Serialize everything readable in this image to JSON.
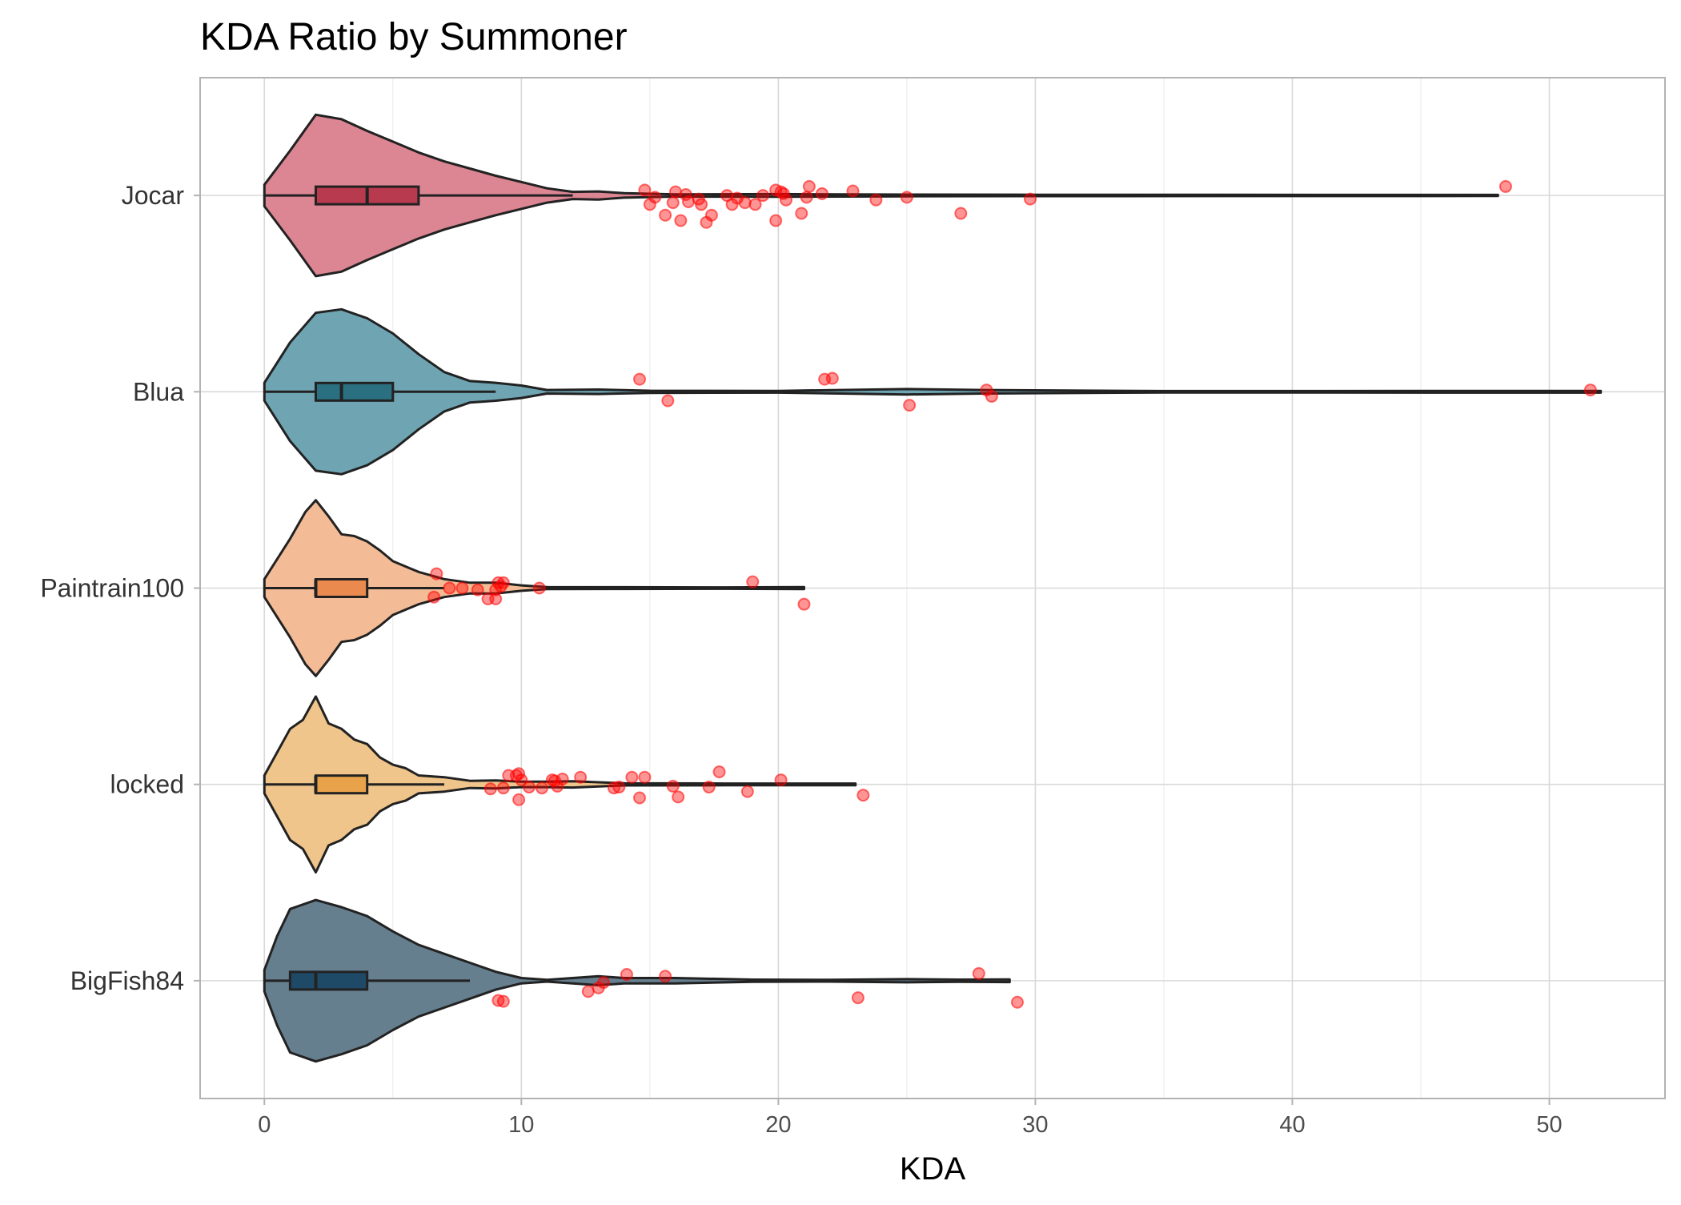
{
  "chart_data": {
    "type": "violin",
    "title": "KDA Ratio by Summoner",
    "xlabel": "KDA",
    "ylabel": "",
    "xlim": [
      -2.5,
      54.5
    ],
    "xticks": [
      0,
      10,
      20,
      30,
      40,
      50
    ],
    "grid": true,
    "colors": {
      "outlier_points": "#ff0000",
      "outline": "#222222",
      "grid": "#d9d9d9",
      "panel_border": "#b3b3b3"
    },
    "categories": [
      "Jocar",
      "Blua",
      "Paintrain100",
      "locked",
      "BigFish84"
    ],
    "series": [
      {
        "name": "Jocar",
        "fill": "#dc8593",
        "box_fill": "#b83a4f",
        "box": {
          "whisker_low": 0,
          "q1": 2,
          "median": 4,
          "q3": 6,
          "whisker_high": 12
        },
        "max": 48,
        "density": [
          [
            0,
            0.12
          ],
          [
            1,
            0.5
          ],
          [
            2,
            0.9
          ],
          [
            3,
            0.85
          ],
          [
            4,
            0.72
          ],
          [
            5,
            0.6
          ],
          [
            6,
            0.48
          ],
          [
            7,
            0.38
          ],
          [
            8,
            0.3
          ],
          [
            9,
            0.22
          ],
          [
            10,
            0.15
          ],
          [
            11,
            0.08
          ],
          [
            12,
            0.04
          ],
          [
            13,
            0.045
          ],
          [
            14,
            0.025
          ],
          [
            16,
            0.012
          ],
          [
            20,
            0.015
          ],
          [
            25,
            0.01
          ],
          [
            30,
            0.008
          ],
          [
            48,
            0.006
          ]
        ],
        "outliers": [
          [
            14.8,
            1.06
          ],
          [
            15.0,
            0.9
          ],
          [
            15.2,
            0.98
          ],
          [
            15.6,
            0.78
          ],
          [
            15.9,
            0.92
          ],
          [
            16.0,
            1.04
          ],
          [
            16.2,
            0.72
          ],
          [
            16.4,
            1.01
          ],
          [
            16.5,
            0.93
          ],
          [
            16.9,
            0.96
          ],
          [
            17.0,
            0.9
          ],
          [
            17.2,
            0.7
          ],
          [
            17.4,
            0.78
          ],
          [
            18.0,
            1.0
          ],
          [
            18.2,
            0.9
          ],
          [
            18.4,
            0.97
          ],
          [
            18.7,
            0.92
          ],
          [
            19.1,
            0.9
          ],
          [
            19.4,
            1.0
          ],
          [
            19.9,
            0.72
          ],
          [
            19.9,
            1.06
          ],
          [
            20.1,
            1.04
          ],
          [
            20.2,
            1.02
          ],
          [
            20.3,
            0.95
          ],
          [
            20.9,
            0.8
          ],
          [
            21.1,
            0.98
          ],
          [
            21.2,
            1.1
          ],
          [
            21.7,
            1.02
          ],
          [
            22.9,
            1.05
          ],
          [
            23.8,
            0.95
          ],
          [
            25.0,
            0.98
          ],
          [
            27.1,
            0.8
          ],
          [
            29.8,
            0.96
          ],
          [
            48.3,
            1.1
          ]
        ]
      },
      {
        "name": "Blua",
        "fill": "#6fa5b3",
        "box_fill": "#2a7080",
        "box": {
          "whisker_low": 0,
          "q1": 2,
          "median": 3,
          "q3": 5,
          "whisker_high": 9
        },
        "max": 52,
        "density": [
          [
            0,
            0.1
          ],
          [
            1,
            0.55
          ],
          [
            2,
            0.88
          ],
          [
            3,
            0.92
          ],
          [
            4,
            0.82
          ],
          [
            5,
            0.65
          ],
          [
            6,
            0.42
          ],
          [
            7,
            0.22
          ],
          [
            8,
            0.12
          ],
          [
            9,
            0.1
          ],
          [
            10,
            0.07
          ],
          [
            11,
            0.02
          ],
          [
            13,
            0.025
          ],
          [
            15,
            0.012
          ],
          [
            20,
            0.01
          ],
          [
            25,
            0.03
          ],
          [
            28,
            0.02
          ],
          [
            35,
            0.008
          ],
          [
            52,
            0.01
          ]
        ],
        "outliers": [
          [
            14.6,
            1.14
          ],
          [
            15.7,
            0.9
          ],
          [
            21.8,
            1.14
          ],
          [
            22.1,
            1.15
          ],
          [
            25.1,
            0.85
          ],
          [
            28.1,
            1.02
          ],
          [
            28.3,
            0.95
          ],
          [
            51.6,
            1.02
          ]
        ]
      },
      {
        "name": "Paintrain100",
        "fill": "#f4bc96",
        "box_fill": "#eb8a4e",
        "box": {
          "whisker_low": 0,
          "q1": 2,
          "median": 2,
          "q3": 4,
          "whisker_high": 7
        },
        "max": 21,
        "density": [
          [
            0,
            0.1
          ],
          [
            1,
            0.55
          ],
          [
            1.6,
            0.85
          ],
          [
            2,
            0.98
          ],
          [
            2.5,
            0.8
          ],
          [
            3,
            0.6
          ],
          [
            3.5,
            0.58
          ],
          [
            4,
            0.52
          ],
          [
            4.5,
            0.42
          ],
          [
            5,
            0.3
          ],
          [
            6,
            0.18
          ],
          [
            7,
            0.1
          ],
          [
            8,
            0.06
          ],
          [
            9,
            0.06
          ],
          [
            10,
            0.03
          ],
          [
            11,
            0.012
          ],
          [
            14,
            0.01
          ],
          [
            18,
            0.008
          ],
          [
            21,
            0.012
          ]
        ],
        "outliers": [
          [
            6.6,
            0.9
          ],
          [
            6.7,
            1.16
          ],
          [
            7.2,
            1.0
          ],
          [
            7.7,
            1.0
          ],
          [
            8.3,
            0.98
          ],
          [
            8.7,
            0.88
          ],
          [
            9.0,
            0.88
          ],
          [
            9.0,
            0.98
          ],
          [
            9.1,
            1.06
          ],
          [
            9.2,
            1.02
          ],
          [
            9.3,
            1.06
          ],
          [
            10.7,
            1.0
          ],
          [
            19.0,
            1.07
          ],
          [
            21.0,
            0.82
          ]
        ]
      },
      {
        "name": "locked",
        "fill": "#f0c58b",
        "box_fill": "#e8a24a",
        "box": {
          "whisker_low": 0,
          "q1": 2,
          "median": 2,
          "q3": 4,
          "whisker_high": 7
        },
        "max": 23,
        "density": [
          [
            0,
            0.1
          ],
          [
            1,
            0.62
          ],
          [
            1.5,
            0.72
          ],
          [
            2,
            0.98
          ],
          [
            2.5,
            0.68
          ],
          [
            3,
            0.62
          ],
          [
            3.5,
            0.5
          ],
          [
            4,
            0.45
          ],
          [
            4.5,
            0.3
          ],
          [
            5,
            0.22
          ],
          [
            5.5,
            0.18
          ],
          [
            6,
            0.1
          ],
          [
            7,
            0.08
          ],
          [
            8,
            0.04
          ],
          [
            9,
            0.045
          ],
          [
            10,
            0.03
          ],
          [
            11,
            0.03
          ],
          [
            12,
            0.035
          ],
          [
            14,
            0.012
          ],
          [
            18,
            0.01
          ],
          [
            23,
            0.01
          ]
        ],
        "outliers": [
          [
            8.8,
            0.95
          ],
          [
            9.3,
            0.96
          ],
          [
            9.5,
            1.1
          ],
          [
            9.8,
            1.1
          ],
          [
            9.9,
            1.12
          ],
          [
            9.9,
            0.83
          ],
          [
            10.0,
            1.05
          ],
          [
            10.3,
            0.97
          ],
          [
            10.8,
            0.96
          ],
          [
            11.2,
            1.05
          ],
          [
            11.3,
            1.04
          ],
          [
            11.4,
            0.98
          ],
          [
            11.6,
            1.06
          ],
          [
            12.3,
            1.08
          ],
          [
            13.6,
            0.96
          ],
          [
            13.8,
            0.97
          ],
          [
            14.3,
            1.08
          ],
          [
            14.6,
            0.85
          ],
          [
            14.8,
            1.08
          ],
          [
            15.9,
            0.98
          ],
          [
            16.1,
            0.86
          ],
          [
            17.3,
            0.97
          ],
          [
            17.7,
            1.14
          ],
          [
            18.8,
            0.92
          ],
          [
            20.1,
            1.05
          ],
          [
            23.3,
            0.88
          ]
        ]
      },
      {
        "name": "BigFish84",
        "fill": "#667f8f",
        "box_fill": "#1e4a68",
        "box": {
          "whisker_low": 0,
          "q1": 1,
          "median": 2,
          "q3": 4,
          "whisker_high": 8
        },
        "max": 29,
        "density": [
          [
            0,
            0.12
          ],
          [
            0.5,
            0.5
          ],
          [
            1,
            0.8
          ],
          [
            2,
            0.9
          ],
          [
            3,
            0.82
          ],
          [
            4,
            0.72
          ],
          [
            5,
            0.55
          ],
          [
            6,
            0.4
          ],
          [
            7,
            0.3
          ],
          [
            8,
            0.2
          ],
          [
            9,
            0.1
          ],
          [
            10,
            0.03
          ],
          [
            11,
            0.01
          ],
          [
            12,
            0.03
          ],
          [
            13,
            0.05
          ],
          [
            14,
            0.03
          ],
          [
            16,
            0.03
          ],
          [
            19,
            0.012
          ],
          [
            22,
            0.01
          ],
          [
            25,
            0.018
          ],
          [
            27,
            0.012
          ],
          [
            29,
            0.015
          ]
        ],
        "outliers": [
          [
            9.1,
            0.78
          ],
          [
            9.3,
            0.77
          ],
          [
            12.6,
            0.88
          ],
          [
            13.0,
            0.92
          ],
          [
            13.2,
            0.98
          ],
          [
            14.1,
            1.07
          ],
          [
            15.6,
            1.05
          ],
          [
            23.1,
            0.81
          ],
          [
            27.8,
            1.08
          ],
          [
            29.3,
            0.76
          ]
        ]
      }
    ]
  }
}
